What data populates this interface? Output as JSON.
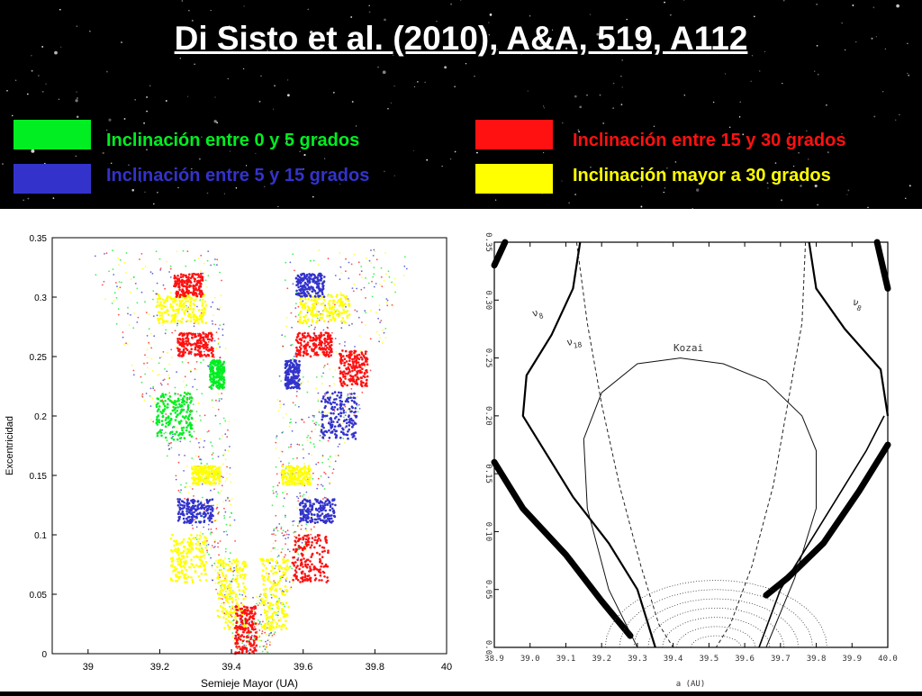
{
  "title": "Di Sisto et al. (2010), A&A, 519, A112",
  "legend": [
    {
      "label": "Inclinación entre 0 y 5 grados",
      "color": "#00ee22"
    },
    {
      "label": "Inclinación entre 5 y 15 grados",
      "color": "#3333cc"
    },
    {
      "label": "Inclinación entre 15 y 30 grados",
      "color": "#ff1111"
    },
    {
      "label": "Inclinación mayor a 30 grados",
      "color": "#ffff00"
    }
  ],
  "chart_data": [
    {
      "type": "scatter",
      "xlabel": "Semieje Mayor (UA)",
      "ylabel": "Excentricidad",
      "xlim": [
        38.9,
        40.0
      ],
      "ylim": [
        0,
        0.35
      ],
      "xticks": [
        "39",
        "39.2",
        "39.4",
        "39.6",
        "39.8",
        "40"
      ],
      "yticks": [
        "0",
        "0.05",
        "0.1",
        "0.15",
        "0.2",
        "0.25",
        "0.3",
        "0.35"
      ],
      "series_colors": [
        "#00ee22",
        "#3333cc",
        "#ff1111",
        "#ffff00"
      ]
    },
    {
      "type": "line",
      "xlabel": "a (AU)",
      "xlim": [
        38.9,
        40.0
      ],
      "ylim": [
        0,
        0.35
      ],
      "xticks": [
        "38.9",
        "39.0",
        "39.1",
        "39.2",
        "39.3",
        "39.4",
        "39.5",
        "39.6",
        "39.7",
        "39.8",
        "39.9",
        "40.0"
      ],
      "yticks": [
        "0.0",
        "0.05",
        "0.10",
        "0.15",
        "0.20",
        "0.25",
        "0.30",
        "0.35"
      ],
      "labels": {
        "nu8": "ν",
        "nu8_sub": "8",
        "nu18": "ν",
        "nu18_sub": "18",
        "kozai": "Kozai"
      }
    }
  ]
}
